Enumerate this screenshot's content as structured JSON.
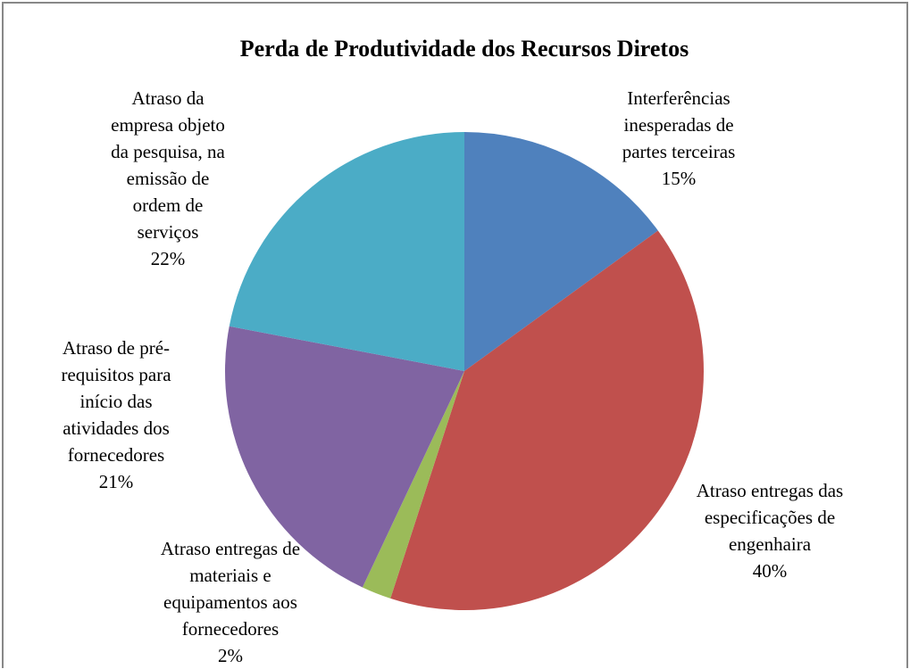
{
  "chart_data": {
    "type": "pie",
    "title": "Perda de Produtividade dos Recursos Diretos",
    "categories": [
      "Interferências inesperadas de partes terceiras",
      "Atraso entregas das especificações de engenhaira",
      "Atraso entregas de materiais e equipamentos aos fornecedores",
      "Atraso de pré-requisitos para início das atividades dos fornecedores",
      "Atraso da empresa objeto da pesquisa, na emissão de ordem de serviços"
    ],
    "values": [
      15,
      40,
      2,
      21,
      22
    ],
    "value_labels": [
      "15%",
      "40%",
      "2%",
      "21%",
      "22%"
    ],
    "colors": [
      "#4f81bd",
      "#c0504d",
      "#9bbb59",
      "#8064a2",
      "#4bacc6"
    ]
  }
}
